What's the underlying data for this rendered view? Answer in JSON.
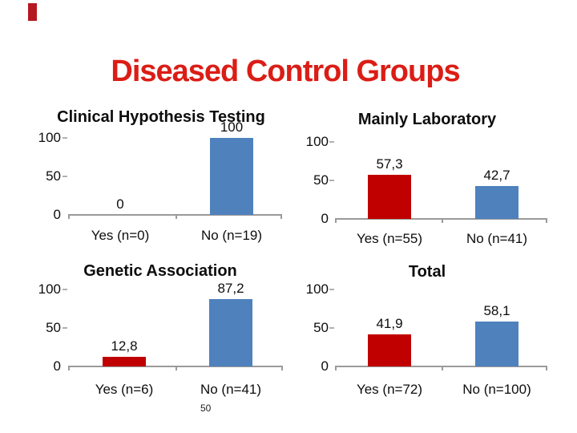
{
  "slide": {
    "title": "Diseased Control Groups",
    "page_number": "50"
  },
  "colors": {
    "title_red": "#db1d16",
    "accent_bar_red": "#b51820",
    "bar_yes_red": "#c00000",
    "bar_no_blue": "#4f81bd",
    "axis_gray": "#9a9a9a",
    "text_black": "#0d0d0d"
  },
  "chart_data": [
    {
      "type": "bar",
      "title": "Clinical Hypothesis Testing",
      "categories": [
        "Yes (n=0)",
        "No (n=19)"
      ],
      "values": [
        0,
        100
      ],
      "value_labels": [
        "0",
        "100"
      ],
      "bar_colors": [
        "#c00000",
        "#4f81bd"
      ],
      "ylabel": "",
      "xlabel": "",
      "ylim": [
        0,
        100
      ],
      "yticks": [
        0,
        50,
        100
      ],
      "grid": false,
      "legend": false
    },
    {
      "type": "bar",
      "title": "Mainly Laboratory",
      "categories": [
        "Yes (n=55)",
        "No (n=41)"
      ],
      "values": [
        57.3,
        42.7
      ],
      "value_labels": [
        "57,3",
        "42,7"
      ],
      "bar_colors": [
        "#c00000",
        "#4f81bd"
      ],
      "ylabel": "",
      "xlabel": "",
      "ylim": [
        0,
        100
      ],
      "yticks": [
        0,
        50,
        100
      ],
      "grid": false,
      "legend": false
    },
    {
      "type": "bar",
      "title": "Genetic Association",
      "categories": [
        "Yes (n=6)",
        "No (n=41)"
      ],
      "values": [
        12.8,
        87.2
      ],
      "value_labels": [
        "12,8",
        "87,2"
      ],
      "bar_colors": [
        "#c00000",
        "#4f81bd"
      ],
      "ylabel": "",
      "xlabel": "",
      "ylim": [
        0,
        100
      ],
      "yticks": [
        0,
        50,
        100
      ],
      "grid": false,
      "legend": false
    },
    {
      "type": "bar",
      "title": "Total",
      "categories": [
        "Yes (n=72)",
        "No (n=100)"
      ],
      "values": [
        41.9,
        58.1
      ],
      "value_labels": [
        "41,9",
        "58,1"
      ],
      "bar_colors": [
        "#c00000",
        "#4f81bd"
      ],
      "ylabel": "",
      "xlabel": "",
      "ylim": [
        0,
        100
      ],
      "yticks": [
        0,
        50,
        100
      ],
      "grid": false,
      "legend": false
    }
  ]
}
